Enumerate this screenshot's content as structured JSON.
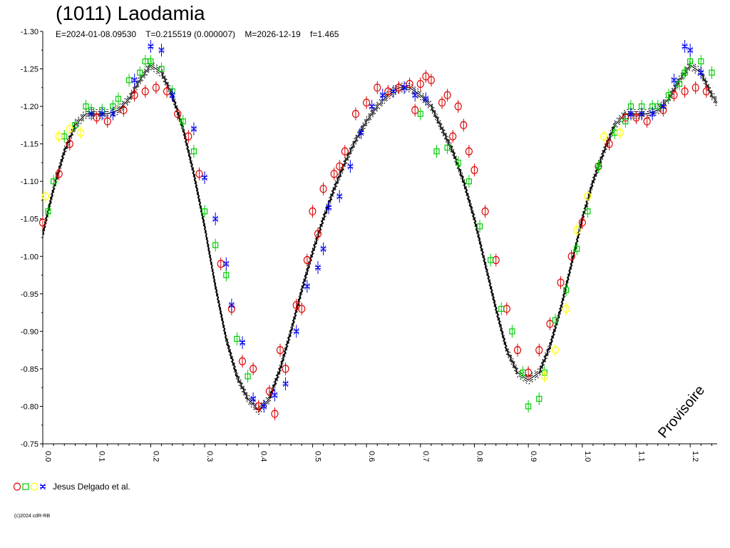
{
  "header": {
    "title": "(1011) Laodamia",
    "params": "E=2024-01-08.09530    T=0.215519 (0.000007)    M=2026-12-19    f=1.465"
  },
  "watermark": "Provisoire",
  "legend": {
    "label": "Jesus Delgado et al.",
    "markers": [
      {
        "shape": "circle",
        "color": "#dd0000"
      },
      {
        "shape": "square",
        "color": "#00cc00"
      },
      {
        "shape": "circle",
        "color": "#ffff00"
      },
      {
        "shape": "star",
        "color": "#0000ee"
      }
    ]
  },
  "copyright": "(c)2024 cdR-RB",
  "colors": {
    "red": "#dd0000",
    "green": "#00cc00",
    "yellow": "#ffff00",
    "blue": "#0000ee",
    "curve": "#000000"
  },
  "chart_data": {
    "type": "scatter",
    "title": "(1011) Laodamia",
    "xlim": [
      0.0,
      1.25
    ],
    "ylim": [
      -1.3,
      -0.75
    ],
    "x_ticks": [
      0.0,
      0.1,
      0.2,
      0.3,
      0.4,
      0.5,
      0.6,
      0.7,
      0.8,
      0.9,
      1.0,
      1.1,
      1.2
    ],
    "x_tick_labels": [
      "0.0",
      "0.1",
      "0.2",
      "0.3",
      "0.4",
      "0.5",
      "0.6",
      "0.7",
      "0.8",
      "0.9",
      "1.0",
      "1.1",
      "1.2"
    ],
    "y_ticks": [
      -1.3,
      -1.25,
      -1.2,
      -1.15,
      -1.1,
      -1.05,
      -1.0,
      -0.95,
      -0.9,
      -0.85,
      -0.8,
      -0.75
    ],
    "y_tick_labels": [
      "-1.30",
      "-1.25",
      "-1.20",
      "-1.15",
      "-1.10",
      "-1.05",
      "-1.00",
      "-0.95",
      "-0.90",
      "-0.85",
      "-0.80",
      "-0.75"
    ],
    "fit_curve": {
      "x": [
        0.0,
        0.02,
        0.04,
        0.06,
        0.08,
        0.1,
        0.12,
        0.14,
        0.16,
        0.18,
        0.2,
        0.22,
        0.24,
        0.26,
        0.28,
        0.3,
        0.32,
        0.34,
        0.36,
        0.38,
        0.4,
        0.42,
        0.44,
        0.46,
        0.48,
        0.5,
        0.52,
        0.54,
        0.56,
        0.58,
        0.6,
        0.62,
        0.64,
        0.66,
        0.68,
        0.7,
        0.72,
        0.74,
        0.76,
        0.78,
        0.8,
        0.82,
        0.84,
        0.86,
        0.88,
        0.9,
        0.92,
        0.94,
        0.96,
        0.98,
        1.0,
        1.02,
        1.04,
        1.06,
        1.08,
        1.1,
        1.12,
        1.14,
        1.16,
        1.18,
        1.2,
        1.22,
        1.24,
        1.25
      ],
      "y": [
        -1.03,
        -1.09,
        -1.14,
        -1.175,
        -1.19,
        -1.19,
        -1.19,
        -1.195,
        -1.21,
        -1.235,
        -1.255,
        -1.245,
        -1.215,
        -1.17,
        -1.11,
        -1.04,
        -0.96,
        -0.89,
        -0.84,
        -0.81,
        -0.795,
        -0.81,
        -0.85,
        -0.9,
        -0.955,
        -1.005,
        -1.05,
        -1.09,
        -1.125,
        -1.155,
        -1.18,
        -1.2,
        -1.215,
        -1.225,
        -1.225,
        -1.215,
        -1.2,
        -1.17,
        -1.14,
        -1.1,
        -1.05,
        -0.99,
        -0.93,
        -0.875,
        -0.845,
        -0.835,
        -0.845,
        -0.88,
        -0.93,
        -0.99,
        -1.05,
        -1.1,
        -1.14,
        -1.175,
        -1.19,
        -1.19,
        -1.19,
        -1.195,
        -1.21,
        -1.235,
        -1.255,
        -1.245,
        -1.215,
        -1.205
      ]
    },
    "series": [
      {
        "name": "Jesus Delgado et al.",
        "marker": "circle",
        "color": "#dd0000",
        "x": [
          0.0,
          0.03,
          0.05,
          0.1,
          0.12,
          0.15,
          0.17,
          0.19,
          0.21,
          0.23,
          0.25,
          0.27,
          0.29,
          0.33,
          0.35,
          0.37,
          0.39,
          0.4,
          0.42,
          0.43,
          0.44,
          0.45,
          0.47,
          0.48,
          0.49,
          0.5,
          0.51,
          0.52,
          0.54,
          0.55,
          0.56,
          0.58,
          0.6,
          0.62,
          0.64,
          0.66,
          0.68,
          0.69,
          0.7,
          0.71,
          0.72,
          0.74,
          0.75,
          0.76,
          0.77,
          0.78,
          0.79,
          0.8,
          0.82,
          0.84,
          0.86,
          0.88,
          0.9,
          0.92,
          0.94,
          0.96,
          0.98,
          1.0,
          1.03,
          1.05,
          1.08,
          1.1,
          1.12,
          1.15,
          1.17,
          1.19,
          1.21,
          1.23
        ],
        "y": [
          -1.045,
          -1.11,
          -1.15,
          -1.185,
          -1.18,
          -1.195,
          -1.215,
          -1.22,
          -1.225,
          -1.22,
          -1.19,
          -1.16,
          -1.11,
          -0.99,
          -0.93,
          -0.86,
          -0.85,
          -0.8,
          -0.82,
          -0.79,
          -0.875,
          -0.85,
          -0.935,
          -0.93,
          -0.995,
          -1.06,
          -1.03,
          -1.09,
          -1.11,
          -1.12,
          -1.14,
          -1.19,
          -1.205,
          -1.225,
          -1.22,
          -1.225,
          -1.23,
          -1.195,
          -1.23,
          -1.24,
          -1.235,
          -1.205,
          -1.215,
          -1.16,
          -1.2,
          -1.175,
          -1.14,
          -1.115,
          -1.06,
          -0.995,
          -0.93,
          -0.875,
          -0.845,
          -0.875,
          -0.91,
          -0.965,
          -1.0,
          -1.045,
          -1.12,
          -1.15,
          -1.185,
          -1.185,
          -1.18,
          -1.195,
          -1.215,
          -1.22,
          -1.225,
          -1.22
        ]
      },
      {
        "name": "",
        "marker": "square",
        "color": "#00cc00",
        "x": [
          0.01,
          0.02,
          0.04,
          0.06,
          0.08,
          0.09,
          0.11,
          0.13,
          0.14,
          0.16,
          0.18,
          0.19,
          0.2,
          0.22,
          0.24,
          0.26,
          0.28,
          0.3,
          0.32,
          0.34,
          0.36,
          0.38,
          0.7,
          0.73,
          0.75,
          0.77,
          0.79,
          0.81,
          0.83,
          0.85,
          0.87,
          0.89,
          0.9,
          0.92,
          0.93,
          0.95,
          0.97,
          0.99,
          1.01,
          1.03,
          1.06,
          1.08,
          1.09,
          1.11,
          1.13,
          1.14,
          1.16,
          1.18,
          1.19,
          1.2,
          1.22,
          1.24
        ],
        "y": [
          -1.06,
          -1.1,
          -1.16,
          -1.175,
          -1.2,
          -1.195,
          -1.195,
          -1.2,
          -1.21,
          -1.235,
          -1.245,
          -1.26,
          -1.26,
          -1.25,
          -1.22,
          -1.18,
          -1.14,
          -1.06,
          -1.015,
          -0.975,
          -0.89,
          -0.84,
          -1.19,
          -1.14,
          -1.145,
          -1.125,
          -1.1,
          -1.04,
          -0.995,
          -0.93,
          -0.9,
          -0.845,
          -0.8,
          -0.81,
          -0.845,
          -0.915,
          -0.955,
          -1.01,
          -1.06,
          -1.12,
          -1.165,
          -1.18,
          -1.2,
          -1.2,
          -1.2,
          -1.2,
          -1.215,
          -1.23,
          -1.245,
          -1.26,
          -1.26,
          -1.245
        ]
      },
      {
        "name": "",
        "marker": "circle",
        "color": "#ffff00",
        "x": [
          0.005,
          0.03,
          0.05,
          0.07,
          0.93,
          0.95,
          0.97,
          0.99,
          1.01,
          1.04,
          1.07
        ],
        "y": [
          -1.08,
          -1.16,
          -1.17,
          -1.165,
          -0.84,
          -0.875,
          -0.93,
          -1.035,
          -1.08,
          -1.16,
          -1.165
        ]
      },
      {
        "name": "",
        "marker": "star",
        "color": "#0000ee",
        "x": [
          0.09,
          0.11,
          0.13,
          0.17,
          0.2,
          0.22,
          0.24,
          0.28,
          0.3,
          0.32,
          0.34,
          0.35,
          0.37,
          0.39,
          0.41,
          0.43,
          0.45,
          0.47,
          0.49,
          0.51,
          0.52,
          0.53,
          0.55,
          0.57,
          0.59,
          0.61,
          0.63,
          0.65,
          0.67,
          0.69,
          0.71,
          1.09,
          1.11,
          1.13,
          1.15,
          1.17,
          1.19,
          1.2,
          1.22
        ],
        "y": [
          -1.19,
          -1.19,
          -1.19,
          -1.235,
          -1.28,
          -1.275,
          -1.215,
          -1.17,
          -1.105,
          -1.05,
          -0.99,
          -0.935,
          -0.885,
          -0.81,
          -0.8,
          -0.815,
          -0.83,
          -0.9,
          -0.96,
          -0.985,
          -1.01,
          -1.065,
          -1.08,
          -1.12,
          -1.165,
          -1.2,
          -1.215,
          -1.22,
          -1.225,
          -1.215,
          -1.21,
          -1.19,
          -1.19,
          -1.19,
          -1.2,
          -1.235,
          -1.28,
          -1.275,
          -1.245
        ]
      }
    ]
  }
}
